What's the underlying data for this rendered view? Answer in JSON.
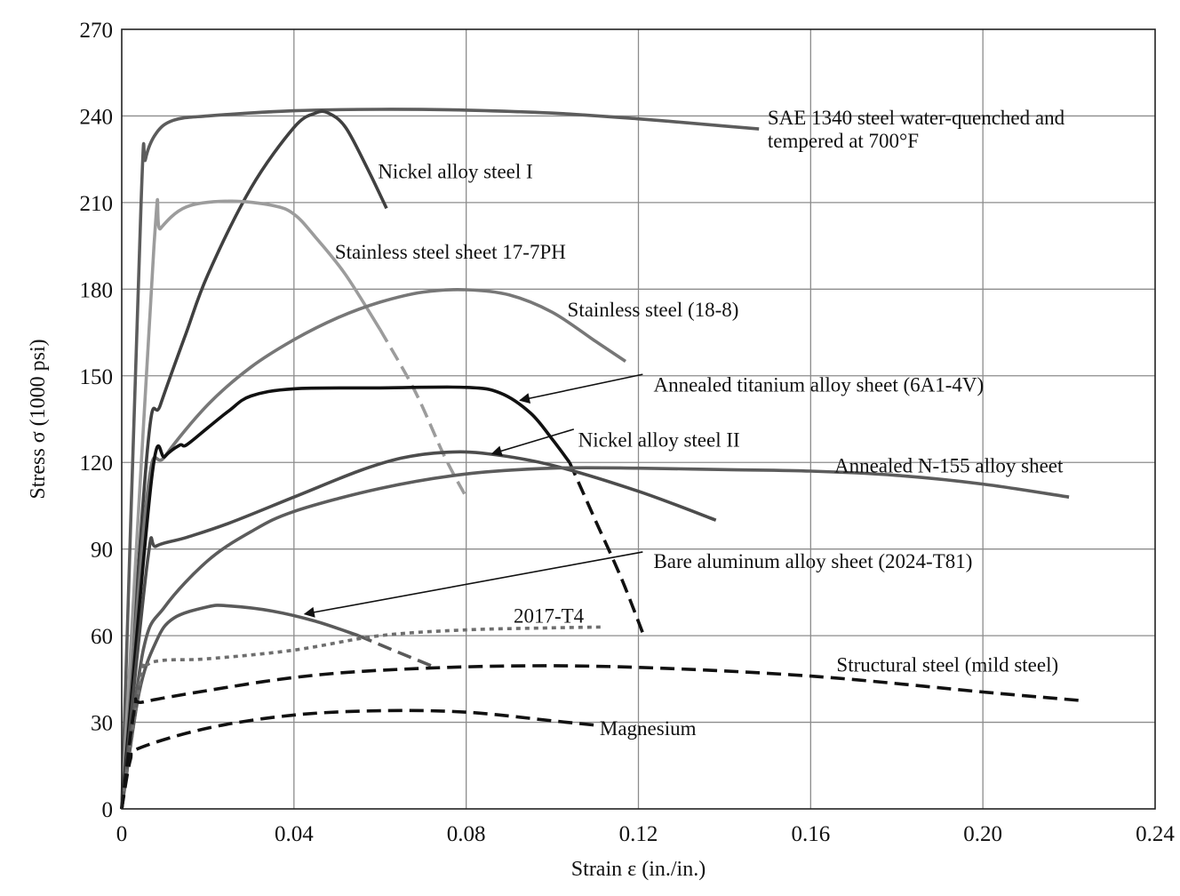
{
  "chart_data": {
    "type": "line",
    "title": "",
    "xlabel": "Strain ε (in./in.)",
    "ylabel": "Stress σ (1000 psi)",
    "xlim": [
      0,
      0.24
    ],
    "ylim": [
      0,
      270
    ],
    "x_ticks": [
      0,
      0.04,
      0.08,
      0.12,
      0.16,
      0.2,
      0.24
    ],
    "x_tick_labels": [
      "0",
      "0.04",
      "0.08",
      "0.12",
      "0.16",
      "0.20",
      "0.24"
    ],
    "y_ticks": [
      0,
      30,
      60,
      90,
      120,
      150,
      180,
      210,
      240,
      270
    ],
    "y_tick_labels": [
      "0",
      "30",
      "60",
      "90",
      "120",
      "150",
      "180",
      "210",
      "240",
      "270"
    ],
    "grid": true,
    "series": [
      {
        "name": "SAE 1340 steel water-quenched and tempered at 700°F",
        "color": "#5c5c5c",
        "dash": "solid",
        "points": [
          [
            0,
            0
          ],
          [
            0.0045,
            210
          ],
          [
            0.0055,
            225
          ],
          [
            0.008,
            234
          ],
          [
            0.012,
            238.5
          ],
          [
            0.02,
            240
          ],
          [
            0.04,
            241.8
          ],
          [
            0.06,
            242.3
          ],
          [
            0.08,
            242
          ],
          [
            0.1,
            241
          ],
          [
            0.12,
            239
          ],
          [
            0.14,
            236.5
          ],
          [
            0.148,
            235.5
          ]
        ]
      },
      {
        "name": "Nickel alloy steel I",
        "color": "#404040",
        "dash": "solid",
        "points": [
          [
            0,
            0
          ],
          [
            0.006,
            125
          ],
          [
            0.009,
            140
          ],
          [
            0.015,
            165
          ],
          [
            0.02,
            185
          ],
          [
            0.03,
            215
          ],
          [
            0.04,
            236
          ],
          [
            0.045,
            241
          ],
          [
            0.048,
            241
          ],
          [
            0.052,
            236
          ],
          [
            0.057,
            222
          ],
          [
            0.0615,
            208
          ]
        ]
      },
      {
        "name": "Stainless steel sheet 17-7PH",
        "color": "#9c9c9c",
        "dash": "solid",
        "points": [
          [
            0,
            0
          ],
          [
            0.0075,
            195
          ],
          [
            0.009,
            201
          ],
          [
            0.015,
            208.5
          ],
          [
            0.025,
            210.5
          ],
          [
            0.035,
            209
          ],
          [
            0.04,
            206
          ],
          [
            0.045,
            198
          ],
          [
            0.052,
            185
          ],
          [
            0.06,
            166
          ]
        ]
      },
      {
        "name": "Stainless steel sheet 17-7PH (dashed)",
        "color": "#9c9c9c",
        "dash": "dashed",
        "points": [
          [
            0.06,
            166
          ],
          [
            0.068,
            145
          ],
          [
            0.075,
            122
          ],
          [
            0.08,
            108
          ]
        ]
      },
      {
        "name": "Stainless steel (18-8)",
        "color": "#777777",
        "dash": "solid",
        "points": [
          [
            0,
            0
          ],
          [
            0.006,
            110
          ],
          [
            0.01,
            122
          ],
          [
            0.02,
            140
          ],
          [
            0.03,
            153
          ],
          [
            0.04,
            162.5
          ],
          [
            0.05,
            170
          ],
          [
            0.06,
            175.5
          ],
          [
            0.07,
            179
          ],
          [
            0.08,
            179.8
          ],
          [
            0.09,
            178
          ],
          [
            0.1,
            172
          ],
          [
            0.11,
            162
          ],
          [
            0.117,
            155
          ]
        ]
      },
      {
        "name": "Annealed titanium alloy sheet (6A1-4V)",
        "color": "#111111",
        "dash": "solid",
        "points": [
          [
            0,
            0
          ],
          [
            0.007,
            115
          ],
          [
            0.01,
            122
          ],
          [
            0.0135,
            126
          ],
          [
            0.015,
            126
          ],
          [
            0.02,
            132
          ],
          [
            0.025,
            138
          ],
          [
            0.03,
            143
          ],
          [
            0.04,
            145.5
          ],
          [
            0.06,
            145.8
          ],
          [
            0.08,
            146
          ],
          [
            0.088,
            144
          ],
          [
            0.095,
            137
          ],
          [
            0.1,
            128
          ],
          [
            0.104,
            120
          ]
        ]
      },
      {
        "name": "Annealed titanium alloy sheet (6A1-4V) (dashed)",
        "color": "#111111",
        "dash": "dashed",
        "points": [
          [
            0.104,
            120
          ],
          [
            0.11,
            100
          ],
          [
            0.116,
            80
          ],
          [
            0.121,
            61
          ]
        ]
      },
      {
        "name": "Nickel alloy steel II",
        "color": "#4c4c4c",
        "dash": "solid",
        "points": [
          [
            0,
            0
          ],
          [
            0.006,
            86
          ],
          [
            0.008,
            91
          ],
          [
            0.015,
            94
          ],
          [
            0.025,
            99
          ],
          [
            0.04,
            108
          ],
          [
            0.055,
            117
          ],
          [
            0.065,
            121.5
          ],
          [
            0.075,
            123.5
          ],
          [
            0.085,
            123
          ],
          [
            0.1,
            119
          ],
          [
            0.12,
            110
          ],
          [
            0.138,
            100
          ]
        ]
      },
      {
        "name": "Annealed N-155 alloy sheet",
        "color": "#5c5c5c",
        "dash": "solid",
        "points": [
          [
            0,
            0
          ],
          [
            0.005,
            55
          ],
          [
            0.01,
            70
          ],
          [
            0.02,
            86
          ],
          [
            0.03,
            96
          ],
          [
            0.04,
            103
          ],
          [
            0.06,
            111
          ],
          [
            0.08,
            116
          ],
          [
            0.1,
            118
          ],
          [
            0.12,
            118
          ],
          [
            0.14,
            117.5
          ],
          [
            0.16,
            117
          ],
          [
            0.18,
            115.5
          ],
          [
            0.2,
            112.5
          ],
          [
            0.22,
            108
          ]
        ]
      },
      {
        "name": "Bare aluminum alloy sheet (2024-T81)",
        "color": "#5a5a5a",
        "dash": "solid",
        "points": [
          [
            0,
            0
          ],
          [
            0.004,
            40
          ],
          [
            0.008,
            58
          ],
          [
            0.012,
            66
          ],
          [
            0.02,
            70
          ],
          [
            0.025,
            70.3
          ],
          [
            0.035,
            68.5
          ],
          [
            0.045,
            65
          ],
          [
            0.055,
            60
          ]
        ]
      },
      {
        "name": "Bare aluminum alloy sheet (2024-T81) (dashed)",
        "color": "#5a5a5a",
        "dash": "dashed",
        "points": [
          [
            0.055,
            60
          ],
          [
            0.063,
            55
          ],
          [
            0.072,
            49.5
          ]
        ]
      },
      {
        "name": "2017-T4",
        "color": "#6e6e6e",
        "dash": "dotted",
        "points": [
          [
            0,
            0
          ],
          [
            0.0045,
            46
          ],
          [
            0.006,
            50
          ],
          [
            0.01,
            51.5
          ],
          [
            0.02,
            52
          ],
          [
            0.04,
            55
          ],
          [
            0.06,
            60
          ],
          [
            0.08,
            62
          ],
          [
            0.1,
            62.7
          ],
          [
            0.112,
            63
          ]
        ]
      },
      {
        "name": "Structural steel (mild steel)",
        "color": "#111111",
        "dash": "dashed",
        "points": [
          [
            0,
            0
          ],
          [
            0.003,
            35
          ],
          [
            0.005,
            37
          ],
          [
            0.02,
            41
          ],
          [
            0.04,
            45.5
          ],
          [
            0.06,
            48
          ],
          [
            0.09,
            49.5
          ],
          [
            0.12,
            49
          ],
          [
            0.16,
            46
          ],
          [
            0.2,
            40.5
          ],
          [
            0.223,
            37.5
          ]
        ]
      },
      {
        "name": "Magnesium",
        "color": "#111111",
        "dash": "dashed",
        "points": [
          [
            0,
            0
          ],
          [
            0.002,
            17
          ],
          [
            0.004,
            21
          ],
          [
            0.02,
            28
          ],
          [
            0.04,
            32.5
          ],
          [
            0.06,
            34
          ],
          [
            0.08,
            33.5
          ],
          [
            0.1,
            30.5
          ],
          [
            0.11,
            29
          ]
        ]
      }
    ],
    "annotations": [
      {
        "text": "SAE 1340 steel water-quenched and",
        "x": 0.15,
        "y": 237
      },
      {
        "text": "tempered at 700°F",
        "x": 0.15,
        "y": 229
      },
      {
        "text": "Nickel alloy steel I",
        "x": 0.0595,
        "y": 218.5
      },
      {
        "text": "Stainless steel sheet 17-7PH",
        "x": 0.0495,
        "y": 190.5
      },
      {
        "text": "Stainless steel (18-8)",
        "x": 0.1035,
        "y": 170.5
      },
      {
        "text": "Annealed titanium alloy sheet (6A1-4V)",
        "x": 0.1235,
        "y": 144.5
      },
      {
        "text": "Nickel alloy steel II",
        "x": 0.106,
        "y": 125.5
      },
      {
        "text": "Annealed N-155 alloy sheet",
        "x": 0.1655,
        "y": 116.5
      },
      {
        "text": "Bare aluminum alloy sheet (2024-T81)",
        "x": 0.1235,
        "y": 83.5
      },
      {
        "text": "2017-T4",
        "x": 0.091,
        "y": 64.5
      },
      {
        "text": "Structural steel (mild steel)",
        "x": 0.166,
        "y": 47.5
      },
      {
        "text": "Magnesium",
        "x": 0.111,
        "y": 25.5
      }
    ],
    "leaders": [
      {
        "from": [
          0.121,
          150.5
        ],
        "to": [
          0.0925,
          141.5
        ]
      },
      {
        "from": [
          0.105,
          131.5
        ],
        "to": [
          0.086,
          123
        ]
      },
      {
        "from": [
          0.121,
          89
        ],
        "to": [
          0.0425,
          67.5
        ]
      }
    ]
  }
}
